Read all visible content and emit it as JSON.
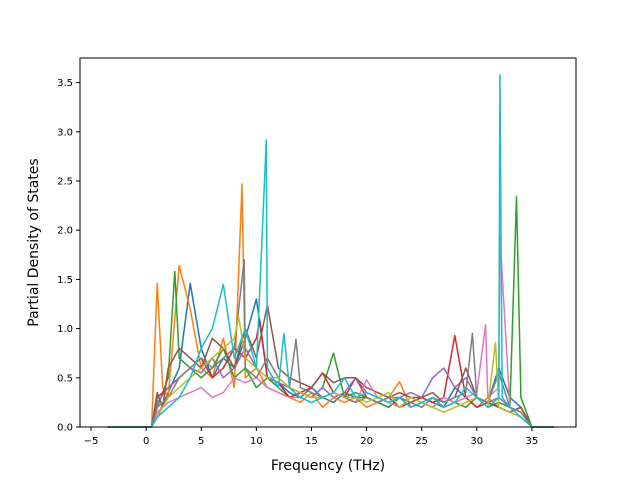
{
  "chart_data": {
    "type": "line",
    "title": "",
    "xlabel": "Frequency (THz)",
    "ylabel": "Partial Density of States",
    "xlim": [
      -6.0,
      39.0
    ],
    "ylim": [
      0.0,
      3.75
    ],
    "xticks": [
      -5,
      0,
      5,
      10,
      15,
      20,
      25,
      30,
      35
    ],
    "xtick_labels": [
      "−5",
      "0",
      "5",
      "10",
      "15",
      "20",
      "25",
      "30",
      "35"
    ],
    "yticks": [
      0.0,
      0.5,
      1.0,
      1.5,
      2.0,
      2.5,
      3.0,
      3.5
    ],
    "ytick_labels": [
      "0.0",
      "0.5",
      "1.0",
      "1.5",
      "2.0",
      "2.5",
      "3.0",
      "3.5"
    ],
    "grid": false,
    "legend": "none",
    "palette": [
      "#1f77b4",
      "#ff7f0e",
      "#2ca02c",
      "#d62728",
      "#9467bd",
      "#8c564b",
      "#e377c2",
      "#7f7f7f",
      "#bcbd22",
      "#17becf"
    ],
    "series": [
      {
        "color": "#1f77b4",
        "x": [
          -3.5,
          0.5,
          1,
          2,
          3,
          4,
          5,
          6,
          7,
          8,
          9,
          10,
          11,
          12,
          13,
          14,
          15,
          16,
          17,
          18,
          19,
          20,
          21,
          22,
          23,
          24,
          25,
          26,
          27,
          28,
          29,
          30,
          31,
          32,
          33,
          34,
          35,
          37
        ],
        "y": [
          0,
          0,
          0.1,
          0.35,
          0.6,
          1.46,
          0.8,
          0.5,
          0.7,
          0.6,
          0.9,
          1.3,
          0.5,
          0.45,
          0.35,
          0.3,
          0.4,
          0.3,
          0.25,
          0.35,
          0.3,
          0.3,
          0.25,
          0.2,
          0.3,
          0.25,
          0.3,
          0.25,
          0.2,
          0.4,
          0.3,
          0.2,
          0.25,
          0.6,
          0.3,
          0.2,
          0,
          0
        ]
      },
      {
        "color": "#ff7f0e",
        "x": [
          -3.5,
          0.5,
          1,
          1.5,
          2,
          3,
          4,
          5,
          6,
          7,
          8,
          8.7,
          9,
          10,
          11,
          12,
          13,
          14,
          15,
          16,
          17,
          18,
          19,
          20,
          21,
          22,
          23,
          24,
          25,
          26,
          27,
          28,
          29,
          30,
          31,
          32,
          33,
          34,
          35,
          37
        ],
        "y": [
          0,
          0,
          1.46,
          0.4,
          0.3,
          1.64,
          1.2,
          0.6,
          0.5,
          0.9,
          0.4,
          2.47,
          0.5,
          0.6,
          0.4,
          0.35,
          0.3,
          0.25,
          0.35,
          0.2,
          0.3,
          0.25,
          0.3,
          0.2,
          0.25,
          0.3,
          0.46,
          0.2,
          0.25,
          0.3,
          0.2,
          0.25,
          0.3,
          0.2,
          0.3,
          0.2,
          0.15,
          0.2,
          0,
          0
        ]
      },
      {
        "color": "#2ca02c",
        "x": [
          -3.5,
          0.5,
          1,
          2,
          2.6,
          3,
          4,
          5,
          6,
          7,
          8,
          9,
          10,
          11,
          12,
          13,
          14,
          15,
          16,
          17,
          18,
          19,
          20,
          21,
          22,
          23,
          24,
          25,
          26,
          27,
          28,
          29,
          30,
          31,
          32,
          33,
          33.6,
          34,
          35,
          37
        ],
        "y": [
          0,
          0,
          0.2,
          0.5,
          1.58,
          0.7,
          0.6,
          0.5,
          0.6,
          0.8,
          0.5,
          0.6,
          0.4,
          0.5,
          0.4,
          0.3,
          0.35,
          0.3,
          0.4,
          0.75,
          0.3,
          0.35,
          0.3,
          0.25,
          0.2,
          0.3,
          0.2,
          0.25,
          0.2,
          0.3,
          0.25,
          0.2,
          0.3,
          0.2,
          0.25,
          0.2,
          2.34,
          0.3,
          0,
          0
        ]
      },
      {
        "color": "#d62728",
        "x": [
          -3.5,
          0.5,
          1,
          2,
          3,
          4,
          5,
          6,
          7,
          8,
          9,
          10,
          10.3,
          11,
          12,
          13,
          14,
          15,
          16,
          17,
          18,
          19,
          20,
          21,
          22,
          23,
          24,
          25,
          26,
          27,
          28,
          29,
          30,
          31,
          32,
          33,
          34,
          35,
          37
        ],
        "y": [
          0,
          0,
          0.3,
          0.4,
          0.5,
          0.6,
          0.7,
          0.5,
          0.6,
          0.8,
          0.7,
          0.9,
          1.09,
          0.5,
          0.45,
          0.3,
          0.35,
          0.4,
          0.55,
          0.35,
          0.3,
          0.5,
          0.3,
          0.25,
          0.3,
          0.2,
          0.25,
          0.3,
          0.25,
          0.3,
          0.93,
          0.3,
          0.2,
          0.25,
          0.2,
          0.15,
          0.2,
          0,
          0
        ]
      },
      {
        "color": "#9467bd",
        "x": [
          -3.5,
          0.5,
          1,
          2,
          3,
          4,
          5,
          6,
          7,
          8,
          9,
          10,
          11,
          12,
          13,
          14,
          15,
          16,
          17,
          18,
          19,
          20,
          21,
          22,
          23,
          24,
          25,
          26,
          27,
          28,
          29,
          30,
          31,
          32,
          33,
          34,
          35,
          37
        ],
        "y": [
          0,
          0,
          0.25,
          0.4,
          0.5,
          0.6,
          0.55,
          0.7,
          0.5,
          0.6,
          0.8,
          0.6,
          0.5,
          0.45,
          0.4,
          0.35,
          0.3,
          0.4,
          0.3,
          0.35,
          0.5,
          0.35,
          0.3,
          0.25,
          0.3,
          0.35,
          0.3,
          0.5,
          0.6,
          0.4,
          0.5,
          0.3,
          0.25,
          0.3,
          0.2,
          0.15,
          0,
          0
        ]
      },
      {
        "color": "#8c564b",
        "x": [
          -3.5,
          0.5,
          1,
          1.5,
          2,
          3,
          4,
          5,
          6,
          7,
          8,
          9,
          10,
          11,
          12,
          13,
          14,
          15,
          16,
          17,
          18,
          19,
          20,
          21,
          22,
          23,
          24,
          25,
          26,
          27,
          28,
          29,
          30,
          31,
          32,
          33,
          34,
          35,
          37
        ],
        "y": [
          0,
          0,
          0.35,
          0.2,
          0.6,
          0.8,
          0.7,
          0.6,
          0.9,
          0.8,
          0.6,
          1.0,
          0.7,
          1.24,
          0.6,
          0.5,
          0.45,
          0.4,
          0.55,
          0.45,
          0.5,
          0.5,
          0.4,
          0.35,
          0.3,
          0.35,
          0.3,
          0.3,
          0.35,
          0.25,
          0.3,
          0.6,
          0.3,
          0.25,
          0.2,
          0.15,
          0.2,
          0,
          0
        ]
      },
      {
        "color": "#e377c2",
        "x": [
          -3.5,
          0.5,
          1,
          2,
          3,
          4,
          5,
          6,
          7,
          8,
          9,
          10,
          11,
          12,
          13,
          14,
          15,
          16,
          17,
          18,
          19,
          20,
          21,
          22,
          23,
          24,
          25,
          26,
          27,
          28,
          29,
          30,
          30.8,
          31,
          32,
          32.1,
          33,
          34,
          35,
          37
        ],
        "y": [
          0,
          0,
          0.15,
          0.25,
          0.3,
          0.35,
          0.4,
          0.3,
          0.35,
          0.5,
          0.45,
          0.5,
          0.4,
          0.35,
          0.3,
          0.3,
          0.25,
          0.3,
          0.35,
          0.3,
          0.25,
          0.48,
          0.3,
          0.25,
          0.2,
          0.3,
          0.25,
          0.2,
          0.3,
          0.25,
          0.3,
          0.35,
          1.04,
          0.3,
          0.4,
          1.95,
          0.2,
          0.1,
          0,
          0
        ]
      },
      {
        "color": "#7f7f7f",
        "x": [
          -3.5,
          0.5,
          1,
          2,
          3,
          4,
          5,
          6,
          7,
          8,
          8.9,
          9,
          10,
          11,
          12,
          13,
          13.6,
          14,
          15,
          16,
          17,
          18,
          19,
          20,
          21,
          22,
          23,
          24,
          25,
          26,
          27,
          28,
          29,
          29.6,
          30,
          31,
          32,
          33,
          34,
          35,
          37
        ],
        "y": [
          0,
          0,
          0.2,
          0.3,
          0.5,
          0.6,
          0.7,
          0.6,
          0.7,
          0.8,
          1.7,
          0.6,
          0.5,
          0.7,
          0.5,
          0.4,
          0.89,
          0.4,
          0.35,
          0.3,
          0.35,
          0.3,
          0.25,
          0.3,
          0.25,
          0.3,
          0.3,
          0.25,
          0.2,
          0.3,
          0.25,
          0.3,
          0.35,
          0.95,
          0.3,
          0.25,
          0.55,
          0.2,
          0.15,
          0,
          0
        ]
      },
      {
        "color": "#bcbd22",
        "x": [
          -3.5,
          0.5,
          1,
          2,
          3,
          4,
          5,
          6,
          7,
          8,
          8.4,
          9,
          10,
          11,
          12,
          13,
          14,
          15,
          16,
          17,
          18,
          19,
          20,
          21,
          22,
          23,
          24,
          25,
          26,
          27,
          28,
          29,
          30,
          31,
          31.7,
          32,
          33,
          34,
          35,
          37
        ],
        "y": [
          0,
          0,
          0.1,
          0.3,
          0.4,
          0.5,
          0.6,
          0.7,
          0.8,
          0.9,
          1.12,
          0.7,
          0.6,
          0.5,
          0.5,
          0.4,
          0.35,
          0.3,
          0.3,
          0.35,
          0.3,
          0.3,
          0.25,
          0.3,
          0.35,
          0.2,
          0.3,
          0.25,
          0.2,
          0.15,
          0.2,
          0.25,
          0.3,
          0.2,
          0.86,
          0.2,
          0.15,
          0.1,
          0,
          0
        ]
      },
      {
        "color": "#17becf",
        "x": [
          -3.5,
          0.5,
          1,
          2,
          3,
          4,
          5,
          6,
          7,
          8,
          9,
          10,
          10.9,
          11,
          12,
          12.5,
          13,
          14,
          15,
          16,
          17,
          18,
          19,
          20,
          21,
          22,
          23,
          24,
          25,
          26,
          27,
          28,
          29,
          30,
          31,
          32,
          32.1,
          32.3,
          33,
          34,
          35,
          37
        ],
        "y": [
          0,
          0,
          0.1,
          0.2,
          0.3,
          0.5,
          0.8,
          1.0,
          1.45,
          0.7,
          1.0,
          0.6,
          2.92,
          0.6,
          0.4,
          0.95,
          0.4,
          0.3,
          0.25,
          0.3,
          0.35,
          0.5,
          0.3,
          0.35,
          0.3,
          0.25,
          0.3,
          0.2,
          0.25,
          0.3,
          0.2,
          0.25,
          0.4,
          0.3,
          0.2,
          0.3,
          3.58,
          0.3,
          0.2,
          0.1,
          0,
          0
        ]
      }
    ]
  }
}
